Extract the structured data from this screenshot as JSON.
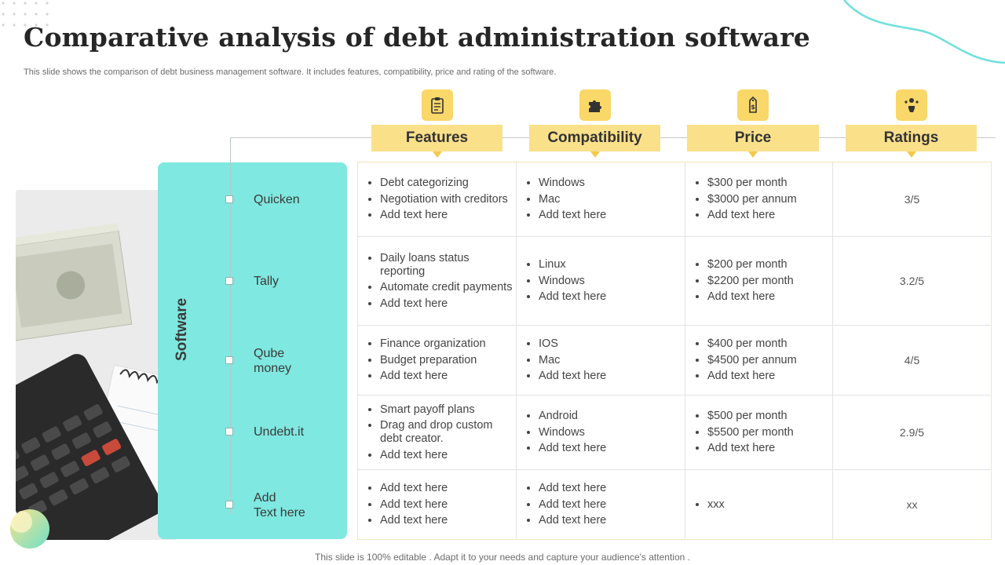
{
  "slide": {
    "title": "Comparative analysis of debt administration software",
    "subtitle": "This slide shows the comparison of debt business management software. It includes features, compatibility, price and rating of the software.",
    "footer": "This slide is 100% editable . Adapt it to your needs and capture your audience's attention ."
  },
  "panel": {
    "label": "Software"
  },
  "columns": [
    {
      "label": "Features",
      "icon": "clipboard-checklist-icon"
    },
    {
      "label": "Compatibility",
      "icon": "puzzle-icon"
    },
    {
      "label": "Price",
      "icon": "price-tag-icon"
    },
    {
      "label": "Ratings",
      "icon": "stars-hand-icon"
    }
  ],
  "rows": [
    {
      "software": "Quicken",
      "features": [
        "Debt categorizing",
        "Negotiation with creditors",
        "Add text here"
      ],
      "compatibility": [
        "Windows",
        "Mac",
        "Add text here"
      ],
      "price": [
        "$300 per month",
        "$3000 per annum",
        "Add text here"
      ],
      "rating": "3/5"
    },
    {
      "software": "Tally",
      "features": [
        "Daily loans status reporting",
        "Automate credit payments",
        "Add text here"
      ],
      "compatibility": [
        "Linux",
        "Windows",
        "Add text here"
      ],
      "price": [
        "$200 per month",
        "$2200 per month",
        "Add text here"
      ],
      "rating": "3.2/5"
    },
    {
      "software": "Qube\nmoney",
      "features": [
        "Finance organization",
        "Budget preparation",
        "Add text here"
      ],
      "compatibility": [
        "IOS",
        "Mac",
        "Add text here"
      ],
      "price": [
        "$400 per month",
        "$4500 per annum",
        "Add text here"
      ],
      "rating": "4/5"
    },
    {
      "software": "Undebt.it",
      "features": [
        "Smart payoff plans",
        "Drag and drop custom debt creator.",
        "Add text here"
      ],
      "compatibility": [
        "Android",
        "Windows",
        "Add text here"
      ],
      "price": [
        "$500 per month",
        "$5500 per month",
        "Add text here"
      ],
      "rating": "2.9/5"
    },
    {
      "software": "Add\nText here",
      "features": [
        "Add text here",
        "Add text here",
        "Add text here"
      ],
      "compatibility": [
        "Add text here",
        "Add text here",
        "Add text here"
      ],
      "price": [
        "xxx"
      ],
      "rating": "xx"
    }
  ],
  "colors": {
    "accent_yellow": "#fbe08a",
    "icon_yellow": "#f9d768",
    "teal": "#7fe8e0"
  }
}
